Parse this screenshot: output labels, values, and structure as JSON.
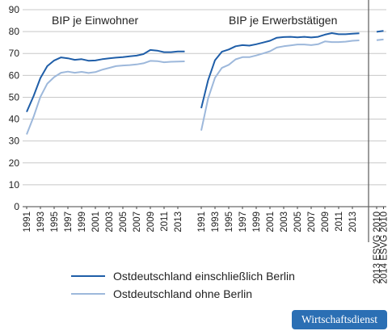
{
  "chart_data": {
    "type": "line",
    "ylim": [
      0,
      90
    ],
    "yticks": [
      0,
      10,
      20,
      30,
      40,
      50,
      60,
      70,
      80,
      90
    ],
    "grid": true,
    "colors": {
      "Ostdeutschland einschließlich Berlin": "#1f5ea8",
      "Ostdeutschland ohne Berlin": "#9db8db",
      "grid": "#c8c8c8",
      "separator": "#666666"
    },
    "x_tick_labels": [
      "1991",
      "1993",
      "1995",
      "1997",
      "1999",
      "2001",
      "2003",
      "2005",
      "2007",
      "2009",
      "2011",
      "2013",
      "1991",
      "1993",
      "1995",
      "1997",
      "1999",
      "2001",
      "2003",
      "2005",
      "2007",
      "2009",
      "2011",
      "2013",
      "2013 ESVG 2010",
      "2014 ESVG 2010"
    ],
    "panels": [
      {
        "title": "BIP je Einwohner",
        "x": [
          1991,
          1992,
          1993,
          1994,
          1995,
          1996,
          1997,
          1998,
          1999,
          2000,
          2001,
          2002,
          2003,
          2004,
          2005,
          2006,
          2007,
          2008,
          2009,
          2010,
          2011,
          2012,
          2013,
          2014
        ],
        "series": [
          {
            "name": "Ostdeutschland einschließlich Berlin",
            "values": [
              43.3,
              50.5,
              58.8,
              64.2,
              66.8,
              68.2,
              67.8,
              67.1,
              67.4,
              66.7,
              66.8,
              67.4,
              67.8,
              68.1,
              68.3,
              68.7,
              69.0,
              69.7,
              71.6,
              71.3,
              70.6,
              70.6,
              70.9,
              70.9
            ]
          },
          {
            "name": "Ostdeutschland ohne Berlin",
            "values": [
              33.0,
              41.0,
              50.2,
              56.2,
              59.2,
              61.2,
              61.7,
              61.2,
              61.6,
              61.1,
              61.5,
              62.6,
              63.4,
              64.2,
              64.5,
              64.7,
              65.0,
              65.5,
              66.6,
              66.5,
              66.0,
              66.2,
              66.3,
              66.4
            ]
          }
        ]
      },
      {
        "title": "BIP je Erwerbstätigen",
        "x": [
          1991,
          1992,
          1993,
          1994,
          1995,
          1996,
          1997,
          1998,
          1999,
          2000,
          2001,
          2002,
          2003,
          2004,
          2005,
          2006,
          2007,
          2008,
          2009,
          2010,
          2011,
          2012,
          2013,
          2014
        ],
        "series": [
          {
            "name": "Ostdeutschland einschließlich Berlin",
            "values": [
              45.0,
              57.8,
              66.9,
              70.8,
              71.8,
              73.3,
              73.8,
              73.6,
              74.2,
              75.0,
              75.8,
              77.2,
              77.5,
              77.6,
              77.4,
              77.6,
              77.3,
              77.6,
              78.6,
              79.3,
              78.8,
              78.8,
              79.0,
              79.2
            ]
          },
          {
            "name": "Ostdeutschland ohne Berlin",
            "values": [
              34.8,
              49.5,
              58.9,
              63.4,
              64.8,
              67.3,
              68.3,
              68.3,
              69.1,
              70.0,
              71.0,
              72.7,
              73.3,
              73.7,
              74.1,
              74.1,
              73.8,
              74.2,
              75.5,
              75.2,
              75.2,
              75.4,
              75.8,
              76.0
            ]
          }
        ]
      },
      {
        "title": "",
        "x": [
          "2013 ESVG 2010",
          "2014 ESVG 2010"
        ],
        "series": [
          {
            "name": "Ostdeutschland einschließlich Berlin",
            "values": [
              79.9,
              80.3
            ]
          },
          {
            "name": "Ostdeutschland ohne Berlin",
            "values": [
              76.1,
              76.4
            ]
          }
        ]
      }
    ],
    "legend": {
      "position": "bottom",
      "entries": [
        "Ostdeutschland einschließlich Berlin",
        "Ostdeutschland ohne Berlin"
      ]
    }
  },
  "badge_text": "Wirtschaftsdienst"
}
